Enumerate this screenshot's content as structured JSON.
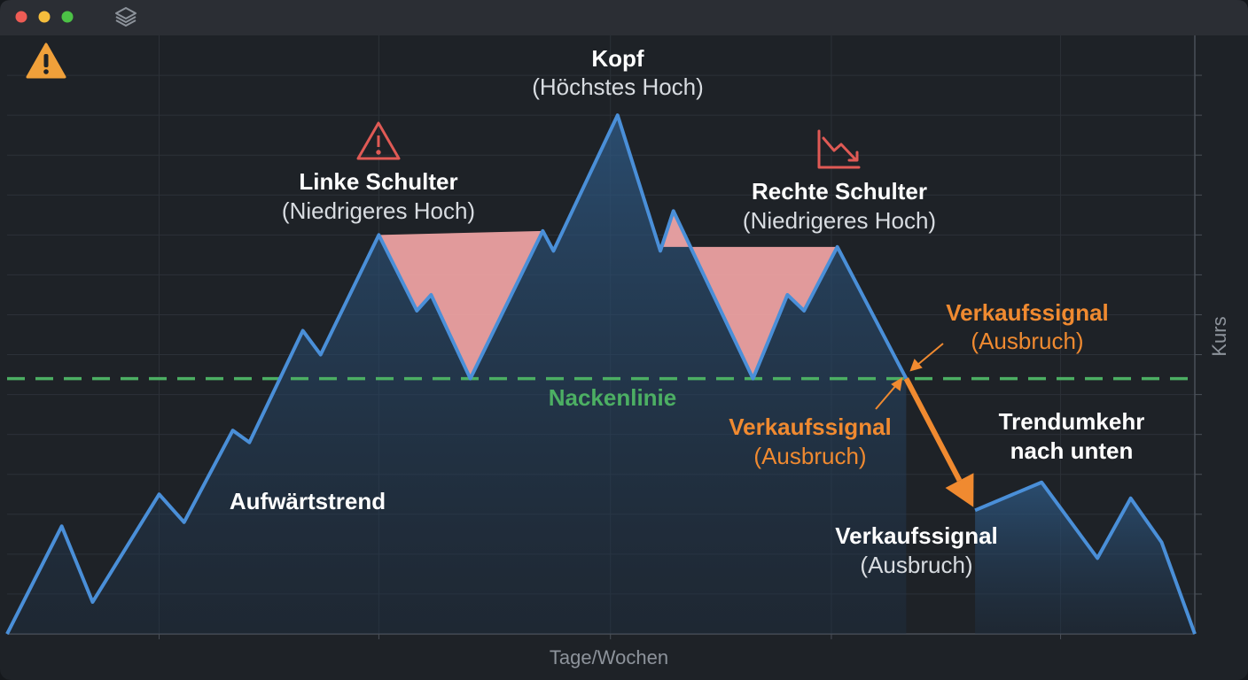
{
  "chart_data": {
    "type": "line",
    "x_label": "Tage/Wochen",
    "y_label": "Kurs",
    "x": [
      0,
      4.6,
      7.2,
      12.8,
      14.9,
      19.0,
      20.4,
      24.9,
      26.4,
      31.3,
      34.5,
      35.7,
      39.0,
      45.1,
      46.0,
      51.4,
      55.0,
      56.1,
      62.8,
      65.7,
      67.1,
      69.9,
      75.7,
      78.0,
      81.5,
      87.1,
      91.8,
      94.6,
      97.2,
      100
    ],
    "series": [
      {
        "color": "#4a8fd8",
        "values": [
          0,
          2.7,
          0.8,
          3.5,
          2.8,
          5.1,
          4.8,
          7.6,
          7.0,
          10.0,
          8.1,
          8.5,
          6.4,
          10.1,
          9.6,
          13.0,
          9.6,
          10.6,
          6.4,
          8.5,
          8.1,
          9.7,
          6.4,
          null,
          3.1,
          3.8,
          1.9,
          3.4,
          2.3,
          0
        ]
      }
    ],
    "neckline": 6.4,
    "xlim": [
      0,
      100
    ],
    "ylim": [
      0,
      15
    ],
    "xgrid": [
      12.8,
      31.3,
      50.8,
      69.4,
      88.7
    ],
    "ygrid": [
      1,
      2,
      3,
      4,
      5,
      6,
      7,
      8,
      9,
      10,
      11,
      12,
      13,
      14
    ],
    "annotations": [
      "Kopf",
      "(Höchstes Hoch)",
      "Linke Schulter",
      "(Niedrigeres Hoch)",
      "Rechte Schulter",
      "(Niedrigeres Hoch)",
      "Verkaufssignal",
      "(Ausbruch)",
      "Nackenlinie",
      "Verkaufssignal",
      "(Ausbruch)",
      "Trendumkehr",
      "nach unten",
      "Aufwärtstrend",
      "Verkaufssignal",
      "(Ausbruch)"
    ]
  }
}
